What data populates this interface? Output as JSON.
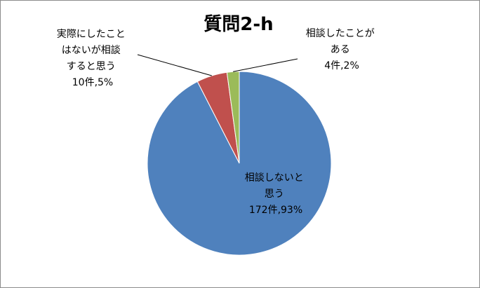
{
  "chart_data": {
    "type": "pie",
    "title": "質問2-h",
    "legend": "none",
    "slices": [
      {
        "lines": [
          "相談しないと",
          "思う"
        ],
        "value_text": "172件,93%",
        "count": 172,
        "percent": 93,
        "color": "#4f81bd"
      },
      {
        "lines": [
          "実際にしたこと",
          "はないが相談",
          "すると思う"
        ],
        "value_text": "10件,5%",
        "count": 10,
        "percent": 5,
        "color": "#c0504d"
      },
      {
        "lines": [
          "相談したことが",
          "ある"
        ],
        "value_text": "4件,2%",
        "count": 4,
        "percent": 2,
        "color": "#9bbb59"
      }
    ]
  }
}
